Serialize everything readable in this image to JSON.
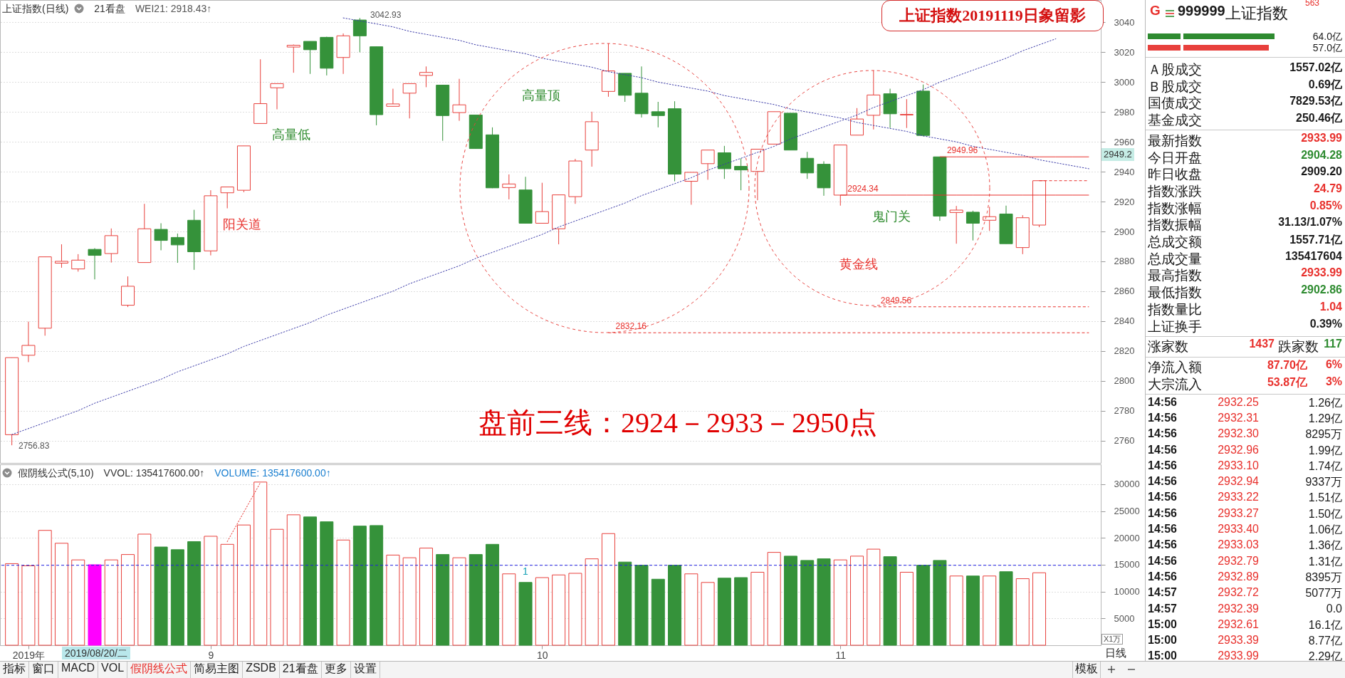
{
  "chart_data": [
    {
      "type": "candlestick",
      "title": "上证指数20191119日象留影",
      "subtitle": "盘前三线：2924－2933－2950点",
      "categories": [
        null,
        null,
        null,
        null,
        null,
        null,
        null,
        null,
        null,
        null,
        null,
        null,
        null,
        null,
        null,
        null,
        null,
        null,
        null,
        null,
        null,
        null,
        null,
        null,
        null,
        null,
        null,
        null,
        null,
        null,
        null,
        null,
        null,
        null,
        null,
        null,
        null,
        null,
        null,
        null,
        null,
        null,
        null,
        null,
        null,
        null,
        null,
        null,
        null,
        null,
        null,
        null,
        null,
        null,
        null,
        null,
        null,
        null,
        null,
        null,
        null,
        null,
        null,
        null,
        null,
        null
      ],
      "ohlc": [
        [
          2763.9,
          2815.5,
          2756.83,
          2815.5
        ],
        [
          2817.1,
          2839.6,
          2812.5,
          2823.7
        ],
        [
          2835.2,
          2883.0,
          2830.2,
          2883.0
        ],
        [
          2878.8,
          2891.4,
          2875.7,
          2880.0
        ],
        [
          2874.9,
          2884.8,
          2873.1,
          2880.8
        ],
        [
          2888.0,
          2888.8,
          2867.9,
          2884.0
        ],
        [
          2885.2,
          2902.0,
          2879.2,
          2897.2
        ],
        [
          2850.6,
          2869.9,
          2849.4,
          2863.3
        ],
        [
          2879.2,
          2918.5,
          2879.2,
          2901.8
        ],
        [
          2901.4,
          2905.5,
          2887.4,
          2894.0
        ],
        [
          2896.0,
          2898.6,
          2879.0,
          2891.0
        ],
        [
          2907.5,
          2914.5,
          2874.3,
          2886.4
        ],
        [
          2887.0,
          2927.6,
          2884.0,
          2923.9
        ],
        [
          2925.9,
          2929.8,
          2915.5,
          2929.8
        ],
        [
          2927.6,
          2957.3,
          2926.3,
          2957.3
        ],
        [
          2972.3,
          3015.3,
          2972.3,
          2985.6
        ],
        [
          2996.2,
          2999.0,
          2981.8,
          2999.0
        ],
        [
          3023.5,
          3025.2,
          3006.3,
          3024.7
        ],
        [
          3027.3,
          3027.3,
          3005.5,
          3021.7
        ],
        [
          3030.0,
          3030.4,
          3004.5,
          3009.3
        ],
        [
          3016.5,
          3032.6,
          3005.5,
          3031.0
        ],
        [
          3041.6,
          3042.93,
          3020.0,
          3031.0
        ],
        [
          3023.7,
          3023.7,
          2971.1,
          2978.2
        ],
        [
          2983.8,
          2995.6,
          2983.8,
          2985.4
        ],
        [
          2992.6,
          2999.0,
          2975.7,
          2999.0
        ],
        [
          3004.5,
          3010.5,
          2996.6,
          3006.5
        ],
        [
          2998.0,
          2998.0,
          2960.7,
          2977.6
        ],
        [
          2979.6,
          3002.2,
          2974.1,
          2984.8
        ],
        [
          2978.0,
          2978.0,
          2955.5,
          2955.5
        ],
        [
          2964.7,
          2969.7,
          2929.0,
          2929.2
        ],
        [
          2929.4,
          2938.2,
          2921.5,
          2931.8
        ],
        [
          2927.8,
          2936.6,
          2905.5,
          2905.5
        ],
        [
          2905.5,
          2932.6,
          2905.5,
          2913.3
        ],
        [
          2901.8,
          2924.5,
          2891.4,
          2924.5
        ],
        [
          2923.3,
          2948.6,
          2918.5,
          2947.2
        ],
        [
          2954.5,
          2980.2,
          2943.4,
          2973.5
        ],
        [
          2993.8,
          3025.9,
          2990.2,
          3007.5
        ],
        [
          3005.9,
          3005.9,
          2986.8,
          2991.2
        ],
        [
          2992.6,
          3010.5,
          2976.3,
          2978.8
        ],
        [
          2980.2,
          2986.8,
          2969.7,
          2977.6
        ],
        [
          2982.2,
          2987.2,
          2933.6,
          2938.4
        ],
        [
          2933.6,
          2939.6,
          2917.9,
          2939.6
        ],
        [
          2945.4,
          2954.5,
          2934.6,
          2954.5
        ],
        [
          2952.7,
          2957.3,
          2935.2,
          2942.0
        ],
        [
          2943.6,
          2949.0,
          2927.6,
          2941.2
        ],
        [
          2940.2,
          2955.1,
          2920.9,
          2955.1
        ],
        [
          2958.5,
          2980.2,
          2958.5,
          2980.2
        ],
        [
          2979.2,
          2979.2,
          2954.5,
          2954.5
        ],
        [
          2949.0,
          2953.3,
          2935.2,
          2939.2
        ],
        [
          2945.0,
          2947.0,
          2923.9,
          2929.2
        ],
        [
          2924.34,
          2957.9,
          2917.3,
          2957.9
        ],
        [
          2964.5,
          2982.6,
          2964.5,
          2975.3
        ],
        [
          2977.8,
          3007.9,
          2968.3,
          2991.4
        ],
        [
          2992.2,
          2995.6,
          2969.3,
          2978.8
        ],
        [
          2978.0,
          2988.6,
          2969.3,
          2978.4
        ],
        [
          2994.0,
          2998.4,
          2963.7,
          2964.3
        ],
        [
          2949.96,
          2949.96,
          2907.1,
          2910.3
        ],
        [
          2912.7,
          2917.1,
          2891.8,
          2914.3
        ],
        [
          2912.9,
          2913.9,
          2894.0,
          2905.5
        ],
        [
          2907.5,
          2916.5,
          2900.4,
          2909.9
        ],
        [
          2911.7,
          2917.3,
          2891.8,
          2891.8
        ],
        [
          2889.2,
          2910.9,
          2884.8,
          2909.2
        ],
        [
          2904.28,
          2933.99,
          2902.86,
          2933.99
        ],
        null,
        null,
        null
      ],
      "colors": [
        "#e8403c",
        "#e8403c",
        "#e8403c",
        "#e8403c",
        "#e8403c",
        "#35923a",
        "#e8403c",
        "#e8403c",
        "#e8403c",
        "#35923a",
        "#35923a",
        "#35923a",
        "#e8403c",
        "#e8403c",
        "#e8403c",
        "#e8403c",
        "#e8403c",
        "#e8403c",
        "#35923a",
        "#35923a",
        "#e8403c",
        "#35923a",
        "#35923a",
        "#e8403c",
        "#e8403c",
        "#e8403c",
        "#35923a",
        "#e8403c",
        "#35923a",
        "#35923a",
        "#e8403c",
        "#35923a",
        "#e8403c",
        "#e8403c",
        "#e8403c",
        "#e8403c",
        "#e8403c",
        "#35923a",
        "#35923a",
        "#35923a",
        "#35923a",
        "#e8403c",
        "#e8403c",
        "#35923a",
        "#35923a",
        "#e8403c",
        "#e8403c",
        "#35923a",
        "#35923a",
        "#35923a",
        "#e8403c",
        "#e8403c",
        "#e8403c",
        "#35923a",
        "#e8403c",
        "#35923a",
        "#35923a",
        "#e8403c",
        "#35923a",
        "#e8403c",
        "#35923a",
        "#e8403c",
        "#e8403c",
        null,
        null,
        null
      ],
      "series": [
        {
          "type": "line",
          "values": [
            2764,
            2768,
            2772,
            2776,
            2780,
            2785,
            2789,
            2793,
            2797,
            2801,
            2806,
            2810,
            2814,
            2818,
            2823,
            2827,
            2831,
            2835,
            2839,
            2844,
            2848,
            2852,
            2856,
            2860,
            2865,
            2869,
            2873,
            2877,
            2882,
            2886,
            2890,
            2894,
            2898,
            2903,
            2907,
            2911,
            2915,
            2919,
            2924,
            2928,
            2932,
            2936,
            2941,
            2945,
            2949,
            2953,
            2957,
            2962,
            2966,
            2970,
            2974,
            2978,
            2983,
            2987,
            2991,
            2995,
            3000,
            3004,
            3008,
            3012,
            3016,
            3021,
            3025,
            3029,
            null,
            null
          ],
          "color": "#3a3aa8",
          "line_style": "dotted"
        },
        {
          "type": "line",
          "values": [
            null,
            null,
            null,
            null,
            null,
            null,
            null,
            null,
            null,
            null,
            null,
            null,
            null,
            null,
            null,
            null,
            null,
            null,
            null,
            null,
            3043,
            3041,
            3039,
            3037,
            3034,
            3032,
            3030,
            3028,
            3025,
            3023,
            3021,
            3019,
            3016,
            3014,
            3012,
            3010,
            3007,
            3005,
            3003,
            3000,
            2998,
            2996,
            2994,
            2991,
            2989,
            2987,
            2985,
            2982,
            2980,
            2978,
            2976,
            2973,
            2971,
            2969,
            2967,
            2964,
            2962,
            2960,
            2957,
            2955,
            2953,
            2951,
            2948,
            2946,
            2944,
            2942
          ],
          "color": "#3a3aa8",
          "line_style": "dotted"
        },
        {
          "type": "line",
          "name": "2949.96",
          "values": [
            null,
            null,
            null,
            null,
            null,
            null,
            null,
            null,
            null,
            null,
            null,
            null,
            null,
            null,
            null,
            null,
            null,
            null,
            null,
            null,
            null,
            null,
            null,
            null,
            null,
            null,
            null,
            null,
            null,
            null,
            null,
            null,
            null,
            null,
            null,
            null,
            null,
            null,
            null,
            null,
            null,
            null,
            null,
            null,
            null,
            null,
            null,
            null,
            null,
            null,
            null,
            null,
            null,
            null,
            null,
            null,
            2949.96,
            2949.96,
            2949.96,
            2949.96,
            2949.96,
            2949.96,
            2949.96,
            2949.96,
            2949.96,
            2949.96
          ],
          "color": "#e8302c",
          "line_style": "solid"
        },
        {
          "type": "line",
          "name": "2924.34",
          "values": [
            null,
            null,
            null,
            null,
            null,
            null,
            null,
            null,
            null,
            null,
            null,
            null,
            null,
            null,
            null,
            null,
            null,
            null,
            null,
            null,
            null,
            null,
            null,
            null,
            null,
            null,
            null,
            null,
            null,
            null,
            null,
            null,
            null,
            null,
            null,
            null,
            null,
            null,
            null,
            null,
            null,
            null,
            null,
            null,
            null,
            null,
            null,
            null,
            null,
            null,
            2924.34,
            2924.34,
            2924.34,
            2924.34,
            2924.34,
            2924.34,
            2924.34,
            2924.34,
            2924.34,
            2924.34,
            2924.34,
            2924.34,
            2924.34,
            2924.34,
            2924.34,
            2924.34
          ],
          "color": "#e8302c",
          "line_style": "solid"
        },
        {
          "type": "line",
          "values": [
            null,
            null,
            null,
            null,
            null,
            null,
            null,
            null,
            null,
            null,
            null,
            null,
            null,
            null,
            null,
            null,
            null,
            null,
            null,
            null,
            null,
            null,
            null,
            null,
            null,
            null,
            null,
            null,
            null,
            null,
            null,
            null,
            null,
            null,
            null,
            null,
            null,
            null,
            null,
            null,
            null,
            null,
            null,
            null,
            null,
            null,
            null,
            null,
            null,
            null,
            null,
            null,
            null,
            null,
            null,
            null,
            null,
            null,
            null,
            null,
            null,
            null,
            2933.99,
            2933.99,
            2933.99,
            2933.99
          ],
          "color": "#e8302c",
          "line_style": "dashed"
        },
        {
          "type": "line",
          "name": "2849.56",
          "values": [
            null,
            null,
            null,
            null,
            null,
            null,
            null,
            null,
            null,
            null,
            null,
            null,
            null,
            null,
            null,
            null,
            null,
            null,
            null,
            null,
            null,
            null,
            null,
            null,
            null,
            null,
            null,
            null,
            null,
            null,
            null,
            null,
            null,
            null,
            null,
            null,
            null,
            null,
            null,
            null,
            null,
            null,
            null,
            null,
            null,
            null,
            null,
            null,
            null,
            null,
            null,
            null,
            2849.56,
            2849.56,
            2849.56,
            2849.56,
            2849.56,
            2849.56,
            2849.56,
            2849.56,
            2849.56,
            2849.56,
            2849.56,
            2849.56,
            2849.56,
            2849.56
          ],
          "color": "#e8302c",
          "line_style": "dashed"
        },
        {
          "type": "line",
          "name": "2832.16",
          "values": [
            null,
            null,
            null,
            null,
            null,
            null,
            null,
            null,
            null,
            null,
            null,
            null,
            null,
            null,
            null,
            null,
            null,
            null,
            null,
            null,
            null,
            null,
            null,
            null,
            null,
            null,
            null,
            null,
            null,
            null,
            null,
            null,
            null,
            null,
            null,
            null,
            2832.16,
            2832.16,
            2832.16,
            2832.16,
            2832.16,
            2832.16,
            2832.16,
            2832.16,
            2832.16,
            2832.16,
            2832.16,
            2832.16,
            2832.16,
            2832.16,
            2832.16,
            2832.16,
            2832.16,
            2832.16,
            2832.16,
            2832.16,
            2832.16,
            2832.16,
            2832.16,
            2832.16,
            2832.16,
            2832.16,
            2832.16,
            2832.16,
            2832.16,
            2832.16
          ],
          "color": "#e8302c",
          "line_style": "dashed"
        }
      ],
      "annotations": [
        "上证指数(日线)",
        "21看盘",
        "WEI21: 2918.43↑",
        "3042.93",
        "2756.83",
        "高量低",
        "阳关道",
        "高量顶",
        "鬼门关",
        "黄金线",
        "2949.2"
      ],
      "ylim": [
        2745,
        3055
      ],
      "yticks": [
        2760,
        2780,
        2800,
        2820,
        2840,
        2860,
        2880,
        2900,
        2920,
        2940,
        2960,
        2980,
        3000,
        3020,
        3040
      ],
      "grid": "y",
      "tick_labels": "y"
    },
    {
      "type": "bar",
      "categories": [
        null,
        "2019年",
        null,
        null,
        null,
        null,
        null,
        null,
        null,
        null,
        null,
        null,
        "9",
        null,
        null,
        null,
        null,
        null,
        null,
        null,
        null,
        null,
        null,
        null,
        null,
        null,
        null,
        null,
        null,
        null,
        null,
        null,
        "10",
        null,
        null,
        null,
        null,
        null,
        null,
        null,
        null,
        null,
        null,
        null,
        null,
        null,
        null,
        null,
        null,
        null,
        "11",
        null,
        null,
        null,
        null,
        null,
        null,
        null,
        null,
        null,
        null,
        null,
        null,
        null,
        null,
        null
      ],
      "values": [
        15200,
        14800,
        21400,
        19000,
        15900,
        15000,
        15900,
        16900,
        20700,
        18300,
        17800,
        19300,
        20300,
        18800,
        22400,
        30400,
        21600,
        24300,
        23900,
        23000,
        19600,
        22200,
        22300,
        16800,
        16300,
        18100,
        16900,
        16300,
        16900,
        18800,
        13300,
        11700,
        12600,
        13100,
        13400,
        16100,
        20800,
        15500,
        14900,
        12300,
        14900,
        13300,
        11700,
        12500,
        12600,
        13600,
        17300,
        16600,
        15800,
        16100,
        15900,
        16600,
        17900,
        16500,
        13600,
        14900,
        15800,
        12900,
        12900,
        12900,
        13700,
        12400,
        13500,
        null,
        null,
        null
      ],
      "colors": [
        "#e8403c",
        "#e8403c",
        "#e8403c",
        "#e8403c",
        "#e8403c",
        "#ff00ff",
        "#e8403c",
        "#e8403c",
        "#e8403c",
        "#35923a",
        "#35923a",
        "#35923a",
        "#e8403c",
        "#e8403c",
        "#e8403c",
        "#e8403c",
        "#e8403c",
        "#e8403c",
        "#35923a",
        "#35923a",
        "#e8403c",
        "#35923a",
        "#35923a",
        "#e8403c",
        "#e8403c",
        "#e8403c",
        "#35923a",
        "#e8403c",
        "#35923a",
        "#35923a",
        "#e8403c",
        "#35923a",
        "#e8403c",
        "#e8403c",
        "#e8403c",
        "#e8403c",
        "#e8403c",
        "#35923a",
        "#35923a",
        "#35923a",
        "#35923a",
        "#e8403c",
        "#e8403c",
        "#35923a",
        "#35923a",
        "#e8403c",
        "#e8403c",
        "#35923a",
        "#35923a",
        "#35923a",
        "#e8403c",
        "#e8403c",
        "#e8403c",
        "#35923a",
        "#e8403c",
        "#35923a",
        "#35923a",
        "#e8403c",
        "#35923a",
        "#e8403c",
        "#35923a",
        "#e8403c",
        "#e8403c",
        null,
        null,
        null
      ],
      "series": [
        {
          "type": "line",
          "values": [
            null,
            null,
            null,
            null,
            null,
            null,
            null,
            null,
            null,
            null,
            null,
            null,
            null,
            19300,
            24800,
            30300,
            null,
            null,
            null,
            null,
            null,
            null,
            null,
            null,
            null,
            null,
            null,
            null,
            null,
            null,
            null,
            null,
            null,
            null,
            null,
            null,
            null,
            null,
            null,
            null,
            null,
            null,
            null,
            null,
            null,
            null,
            null,
            null,
            null,
            null,
            null,
            null,
            null,
            null,
            null,
            null,
            null,
            null,
            null,
            null,
            null,
            null,
            null,
            null,
            null,
            null
          ],
          "color": "#e8302c",
          "line_style": "dotted"
        }
      ],
      "annotations": [
        "假阴线公式(5,10)",
        "VVOL: 135417600.00↑",
        "VOLUME: 135417600.00↑",
        "1",
        "2019/08/20/二"
      ],
      "ylabel": "X1万",
      "ylim": [
        0,
        33700
      ],
      "yticks": [
        5000,
        10000,
        15000,
        20000,
        25000,
        30000
      ],
      "grid": "y",
      "ref_lines": [
        {
          "axis": "y",
          "value": 14900,
          "color": "#2020e0",
          "line_style": "dashed"
        }
      ]
    },
    {
      "type": "other",
      "annotations": [
        "G",
        "999999",
        "上证指数",
        "563",
        "64.0亿",
        "57.0亿",
        "Ａ股成交",
        "1557.02亿",
        "Ｂ股成交",
        "0.69亿",
        "国债成交",
        "7829.53亿",
        "基金成交",
        "250.46亿",
        "最新指数",
        "2933.99",
        "今日开盘",
        "2904.28",
        "昨日收盘",
        "2909.20",
        "指数涨跌",
        "24.79",
        "指数涨幅",
        "0.85%",
        "指数振幅",
        "31.13/1.07%",
        "总成交额",
        "1557.71亿",
        "总成交量",
        "135417604",
        "最高指数",
        "2933.99",
        "最低指数",
        "2902.86",
        "指数量比",
        "1.04",
        "上证换手",
        "0.39%",
        "涨家数",
        "1437",
        "跌家数",
        "117",
        "净流入额",
        "87.70亿",
        "6%",
        "大宗流入",
        "53.87亿",
        "3%",
        "14:56",
        "2932.25",
        "1.26亿",
        "14:56",
        "2932.31",
        "1.29亿",
        "14:56",
        "2932.30",
        "8295万",
        "14:56",
        "2932.96",
        "1.99亿",
        "14:56",
        "2933.10",
        "1.74亿",
        "14:56",
        "2932.94",
        "9337万",
        "14:56",
        "2933.22",
        "1.51亿",
        "14:56",
        "2933.27",
        "1.50亿",
        "14:56",
        "2933.40",
        "1.06亿",
        "14:56",
        "2933.03",
        "1.36亿",
        "14:56",
        "2932.79",
        "1.31亿",
        "14:56",
        "2932.89",
        "8395万",
        "14:57",
        "2932.72",
        "5077万",
        "14:57",
        "2932.39",
        "0.0",
        "15:00",
        "2932.61",
        "16.1亿",
        "15:00",
        "2933.39",
        "8.77亿",
        "15:00",
        "2933.99",
        "2.29亿"
      ],
      "colors": [
        "#e8302c",
        null,
        null,
        "#e8302c",
        null,
        null,
        null,
        null,
        null,
        null,
        null,
        null,
        null,
        null,
        null,
        "#e8302c",
        null,
        "#2e8b30",
        null,
        null,
        null,
        "#e8302c",
        null,
        "#e8302c",
        null,
        null,
        null,
        null,
        null,
        null,
        null,
        "#e8302c",
        null,
        "#2e8b30",
        null,
        "#e8302c",
        null,
        null,
        null,
        "#e8302c",
        null,
        "#2e8b30",
        null,
        "#e8302c",
        "#e8302c",
        null,
        "#e8302c",
        "#e8302c",
        null,
        "#e8302c",
        null,
        null,
        "#e8302c",
        null,
        null,
        "#e8302c",
        null,
        null,
        "#e8302c",
        null,
        null,
        "#e8302c",
        null,
        null,
        "#e8302c",
        null,
        null,
        "#e8302c",
        null,
        null,
        "#e8302c",
        null,
        null,
        "#e8302c",
        null,
        null,
        "#e8302c",
        null,
        null,
        "#e8302c",
        null,
        null,
        "#e8302c",
        null,
        null,
        "#e8302c",
        null,
        null,
        "#e8302c",
        null,
        null,
        "#e8302c",
        null,
        null,
        "#e8302c",
        null,
        null,
        "#e8302c",
        null
      ]
    },
    {
      "type": "other",
      "annotations": [
        "指标",
        "窗口",
        "MACD",
        "VOL",
        "假阴线公式",
        "简易主图",
        "ZSDB",
        "21看盘",
        "更多",
        "设置",
        "模板",
        "日线"
      ],
      "colors": [
        null,
        null,
        null,
        null,
        "#e8302c",
        null,
        null,
        null,
        null,
        null,
        null,
        null
      ]
    }
  ]
}
